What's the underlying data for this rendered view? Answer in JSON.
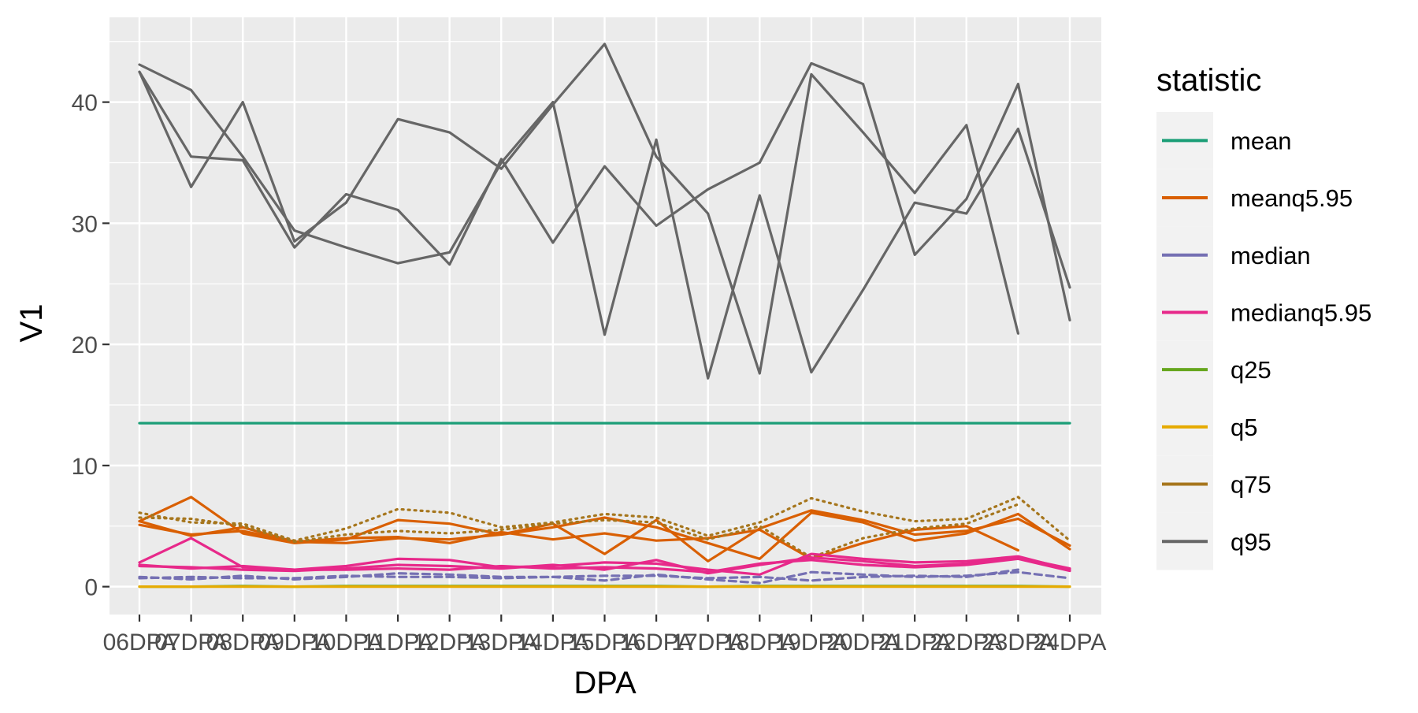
{
  "chart_data": {
    "type": "line",
    "title": "",
    "xlabel": "DPA",
    "ylabel": "V1",
    "ylim": [
      -2.3,
      47.0
    ],
    "y_ticks": [
      0,
      10,
      20,
      30,
      40
    ],
    "grid": true,
    "legend_title": "statistic",
    "legend_position": "right",
    "categories": [
      "06DPA",
      "07DPA",
      "08DPA",
      "09DPA",
      "10DPA",
      "11DPA",
      "12DPA",
      "13DPA",
      "14DPA",
      "15DPA",
      "16DPA",
      "17DPA",
      "18DPA",
      "19DPA",
      "20DPA",
      "21DPA",
      "22DPA",
      "23DPA",
      "24DPA"
    ],
    "legend": [
      {
        "name": "mean",
        "color": "#1B9E77"
      },
      {
        "name": "meanq5.95",
        "color": "#D95F02"
      },
      {
        "name": "median",
        "color": "#7570B3"
      },
      {
        "name": "medianq5.95",
        "color": "#E7298A"
      },
      {
        "name": "q25",
        "color": "#66A61E"
      },
      {
        "name": "q5",
        "color": "#E6AB02"
      },
      {
        "name": "q75",
        "color": "#A6761D"
      },
      {
        "name": "q95",
        "color": "#666666"
      }
    ],
    "series": [
      {
        "statistic": "q95",
        "dash": "solid",
        "values": [
          42.5,
          35.5,
          35.2,
          28.0,
          32.4,
          31.1,
          26.6,
          35.3,
          28.4,
          34.7,
          29.8,
          32.8,
          35.0,
          43.2,
          41.5,
          27.4,
          32.0,
          41.5,
          22.0
        ]
      },
      {
        "statistic": "q95",
        "dash": "solid",
        "values": [
          43.1,
          41.0,
          35.5,
          29.4,
          28.0,
          26.7,
          27.6,
          35.0,
          40.0,
          20.8,
          36.9,
          17.2,
          32.3,
          17.7,
          24.5,
          31.7,
          30.8,
          37.8,
          24.7
        ]
      },
      {
        "statistic": "q95",
        "dash": "solid",
        "values": [
          42.5,
          33.0,
          40.0,
          28.5,
          31.7,
          38.6,
          37.5,
          34.5,
          39.8,
          44.8,
          35.5,
          30.8,
          17.6,
          42.3,
          37.5,
          32.5,
          38.1,
          20.9,
          null
        ]
      },
      {
        "statistic": "mean",
        "dash": "solid",
        "values": [
          13.5,
          13.5,
          13.5,
          13.5,
          13.5,
          13.5,
          13.5,
          13.5,
          13.5,
          13.5,
          13.5,
          13.5,
          13.5,
          13.5,
          13.5,
          13.5,
          13.5,
          13.5,
          13.5
        ]
      },
      {
        "statistic": "meanq5.95",
        "dash": "solid",
        "values": [
          5.4,
          7.4,
          4.4,
          3.6,
          3.9,
          5.5,
          5.2,
          4.3,
          5.2,
          2.7,
          5.5,
          2.1,
          4.8,
          6.3,
          5.5,
          4.3,
          4.6,
          5.6,
          3.4
        ]
      },
      {
        "statistic": "meanq5.95",
        "dash": "solid",
        "values": [
          5.1,
          4.3,
          4.6,
          3.7,
          4.0,
          4.1,
          3.6,
          4.5,
          3.9,
          4.4,
          3.8,
          4.0,
          4.7,
          2.3,
          3.6,
          4.7,
          5.0,
          3.0,
          null
        ]
      },
      {
        "statistic": "meanq5.95",
        "dash": "solid",
        "values": [
          5.4,
          4.2,
          4.9,
          3.7,
          3.6,
          4.0,
          3.9,
          4.3,
          4.9,
          5.7,
          4.9,
          3.6,
          2.3,
          6.1,
          5.3,
          3.8,
          4.4,
          6.0,
          3.1
        ]
      },
      {
        "statistic": "q75",
        "dash": "dotted",
        "values": [
          6.1,
          5.3,
          5.2,
          3.8,
          4.8,
          6.4,
          6.1,
          4.9,
          5.3,
          6.0,
          5.7,
          4.2,
          5.3,
          7.3,
          6.2,
          5.4,
          5.6,
          7.4,
          3.8
        ]
      },
      {
        "statistic": "q75",
        "dash": "dotted",
        "values": [
          5.7,
          5.6,
          5.0,
          3.7,
          4.3,
          4.6,
          4.4,
          4.7,
          5.2,
          5.5,
          5.3,
          3.9,
          5.0,
          2.4,
          4.0,
          4.8,
          5.2,
          6.8,
          null
        ]
      },
      {
        "statistic": "medianq5.95",
        "dash": "solid",
        "values": [
          2.0,
          4.0,
          1.6,
          1.4,
          1.7,
          2.3,
          2.2,
          1.6,
          1.7,
          2.0,
          1.9,
          1.4,
          1.0,
          2.7,
          2.3,
          2.0,
          2.1,
          2.5,
          1.4
        ]
      },
      {
        "statistic": "medianq5.95",
        "dash": "solid",
        "values": [
          1.7,
          1.6,
          1.4,
          1.3,
          1.5,
          1.8,
          1.7,
          1.5,
          1.8,
          1.4,
          2.2,
          1.1,
          1.8,
          2.4,
          2.1,
          1.7,
          1.9,
          2.4,
          1.5
        ]
      },
      {
        "statistic": "medianq5.95",
        "dash": "solid",
        "values": [
          1.8,
          1.5,
          1.7,
          1.4,
          1.4,
          1.5,
          1.4,
          1.7,
          1.5,
          1.6,
          1.5,
          1.2,
          1.9,
          2.2,
          1.8,
          1.6,
          1.8,
          2.3,
          1.3
        ]
      },
      {
        "statistic": "median",
        "dash": "dashed",
        "values": [
          0.8,
          0.6,
          0.9,
          0.6,
          0.8,
          1.1,
          1.0,
          0.8,
          0.8,
          0.5,
          1.0,
          0.6,
          0.3,
          1.2,
          1.0,
          0.8,
          0.9,
          1.2,
          0.7
        ]
      },
      {
        "statistic": "median",
        "dash": "dashed",
        "values": [
          0.7,
          0.8,
          0.7,
          0.7,
          0.9,
          0.8,
          0.8,
          0.7,
          0.8,
          0.9,
          0.9,
          0.7,
          0.8,
          0.5,
          0.8,
          0.9,
          0.8,
          1.4,
          null
        ]
      },
      {
        "statistic": "q25",
        "dash": "solid",
        "values": [
          0.0,
          0.0,
          0.05,
          0.0,
          0.05,
          0.05,
          0.05,
          0.05,
          0.05,
          0.05,
          0.05,
          0.0,
          0.05,
          0.05,
          0.05,
          0.05,
          0.05,
          0.05,
          0.0
        ]
      },
      {
        "statistic": "q5",
        "dash": "solid",
        "values": [
          0.0,
          0.0,
          0.0,
          0.0,
          0.0,
          0.0,
          0.0,
          0.0,
          0.0,
          0.0,
          0.0,
          0.0,
          0.0,
          0.0,
          0.0,
          0.0,
          0.0,
          0.0,
          0.0
        ]
      }
    ]
  }
}
